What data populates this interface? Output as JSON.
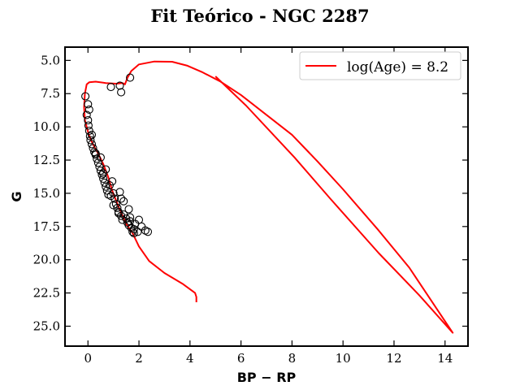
{
  "chart_data": {
    "type": "scatter",
    "title": "Fit Teórico - NGC 2287",
    "xlabel": "BP − RP",
    "ylabel": "G",
    "xlim": [
      -0.9,
      14.9
    ],
    "ylim": [
      26.5,
      4.0
    ],
    "y_inverted": true,
    "xticks": [
      0,
      2,
      4,
      6,
      8,
      10,
      12,
      14
    ],
    "yticks": [
      5.0,
      7.5,
      10.0,
      12.5,
      15.0,
      17.5,
      20.0,
      22.5,
      25.0
    ],
    "grid": false,
    "legend_position": "top-right",
    "series": [
      {
        "name": "log(Age) = 8.2",
        "kind": "line",
        "color": "#ff0000",
        "x": [
          4.25,
          4.25,
          4.2,
          3.7,
          3.0,
          2.4,
          2.0,
          1.75,
          1.5,
          1.2,
          0.95,
          0.8,
          0.6,
          0.4,
          0.25,
          0.12,
          0.02,
          -0.05,
          -0.12,
          -0.15,
          -0.12,
          -0.05,
          0.05,
          0.3,
          0.7,
          1.1,
          1.35,
          1.45,
          1.55,
          1.7,
          2.0,
          2.6,
          3.3,
          3.9,
          4.5,
          5.2,
          6.0,
          7.0,
          8.0,
          9.0,
          10.0,
          11.4,
          12.6,
          14.3,
          13.0,
          11.4,
          9.5,
          8.1,
          6.2,
          5.0
        ],
        "y": [
          23.2,
          22.8,
          22.5,
          21.8,
          21.0,
          20.1,
          19.0,
          18.0,
          17.3,
          16.0,
          14.8,
          13.8,
          12.8,
          12.0,
          11.5,
          11.0,
          10.5,
          10.0,
          9.5,
          8.5,
          7.5,
          6.8,
          6.65,
          6.6,
          6.7,
          6.75,
          6.7,
          6.8,
          6.3,
          5.8,
          5.3,
          5.08,
          5.1,
          5.4,
          5.9,
          6.6,
          7.6,
          9.1,
          10.6,
          12.6,
          14.7,
          17.8,
          20.6,
          25.5,
          22.7,
          19.5,
          15.4,
          12.3,
          8.4,
          6.2
        ]
      },
      {
        "name": "",
        "kind": "scatter",
        "color": "#000000",
        "x": [
          -0.1,
          0.0,
          0.05,
          -0.05,
          0.0,
          0.02,
          0.05,
          0.08,
          0.1,
          0.15,
          0.2,
          0.25,
          0.3,
          0.35,
          0.4,
          0.45,
          0.5,
          0.55,
          0.6,
          0.65,
          0.7,
          0.75,
          0.8,
          0.5,
          0.7,
          0.85,
          0.95,
          1.0,
          1.05,
          1.1,
          1.15,
          1.2,
          1.3,
          1.35,
          1.4,
          1.5,
          1.55,
          1.6,
          1.65,
          1.7,
          1.75,
          1.8,
          1.85,
          1.95,
          2.0,
          2.1,
          2.25,
          2.35,
          1.0,
          1.2,
          1.4,
          1.6,
          1.8,
          0.9,
          1.25,
          1.3,
          1.65,
          0.6,
          0.3,
          0.15
        ],
        "y": [
          7.7,
          8.3,
          8.7,
          9.1,
          9.5,
          9.9,
          10.3,
          10.7,
          11.0,
          11.3,
          11.6,
          11.9,
          12.0,
          12.4,
          12.7,
          13.0,
          13.3,
          13.6,
          13.9,
          14.2,
          14.5,
          14.8,
          15.1,
          12.3,
          13.2,
          14.4,
          14.1,
          15.0,
          15.4,
          15.8,
          16.1,
          16.4,
          16.7,
          17.0,
          16.6,
          16.9,
          17.2,
          17.4,
          16.8,
          17.6,
          17.9,
          18.0,
          17.3,
          17.9,
          17.0,
          17.5,
          17.8,
          17.9,
          15.9,
          16.5,
          15.6,
          16.2,
          17.7,
          15.2,
          14.9,
          15.4,
          17.1,
          13.5,
          12.1,
          10.6
        ]
      },
      {
        "name": "",
        "kind": "scatter",
        "color": "#000000",
        "x": [
          0.9,
          1.25,
          1.3,
          1.65
        ],
        "y": [
          7.0,
          6.9,
          7.4,
          6.3
        ]
      }
    ]
  }
}
